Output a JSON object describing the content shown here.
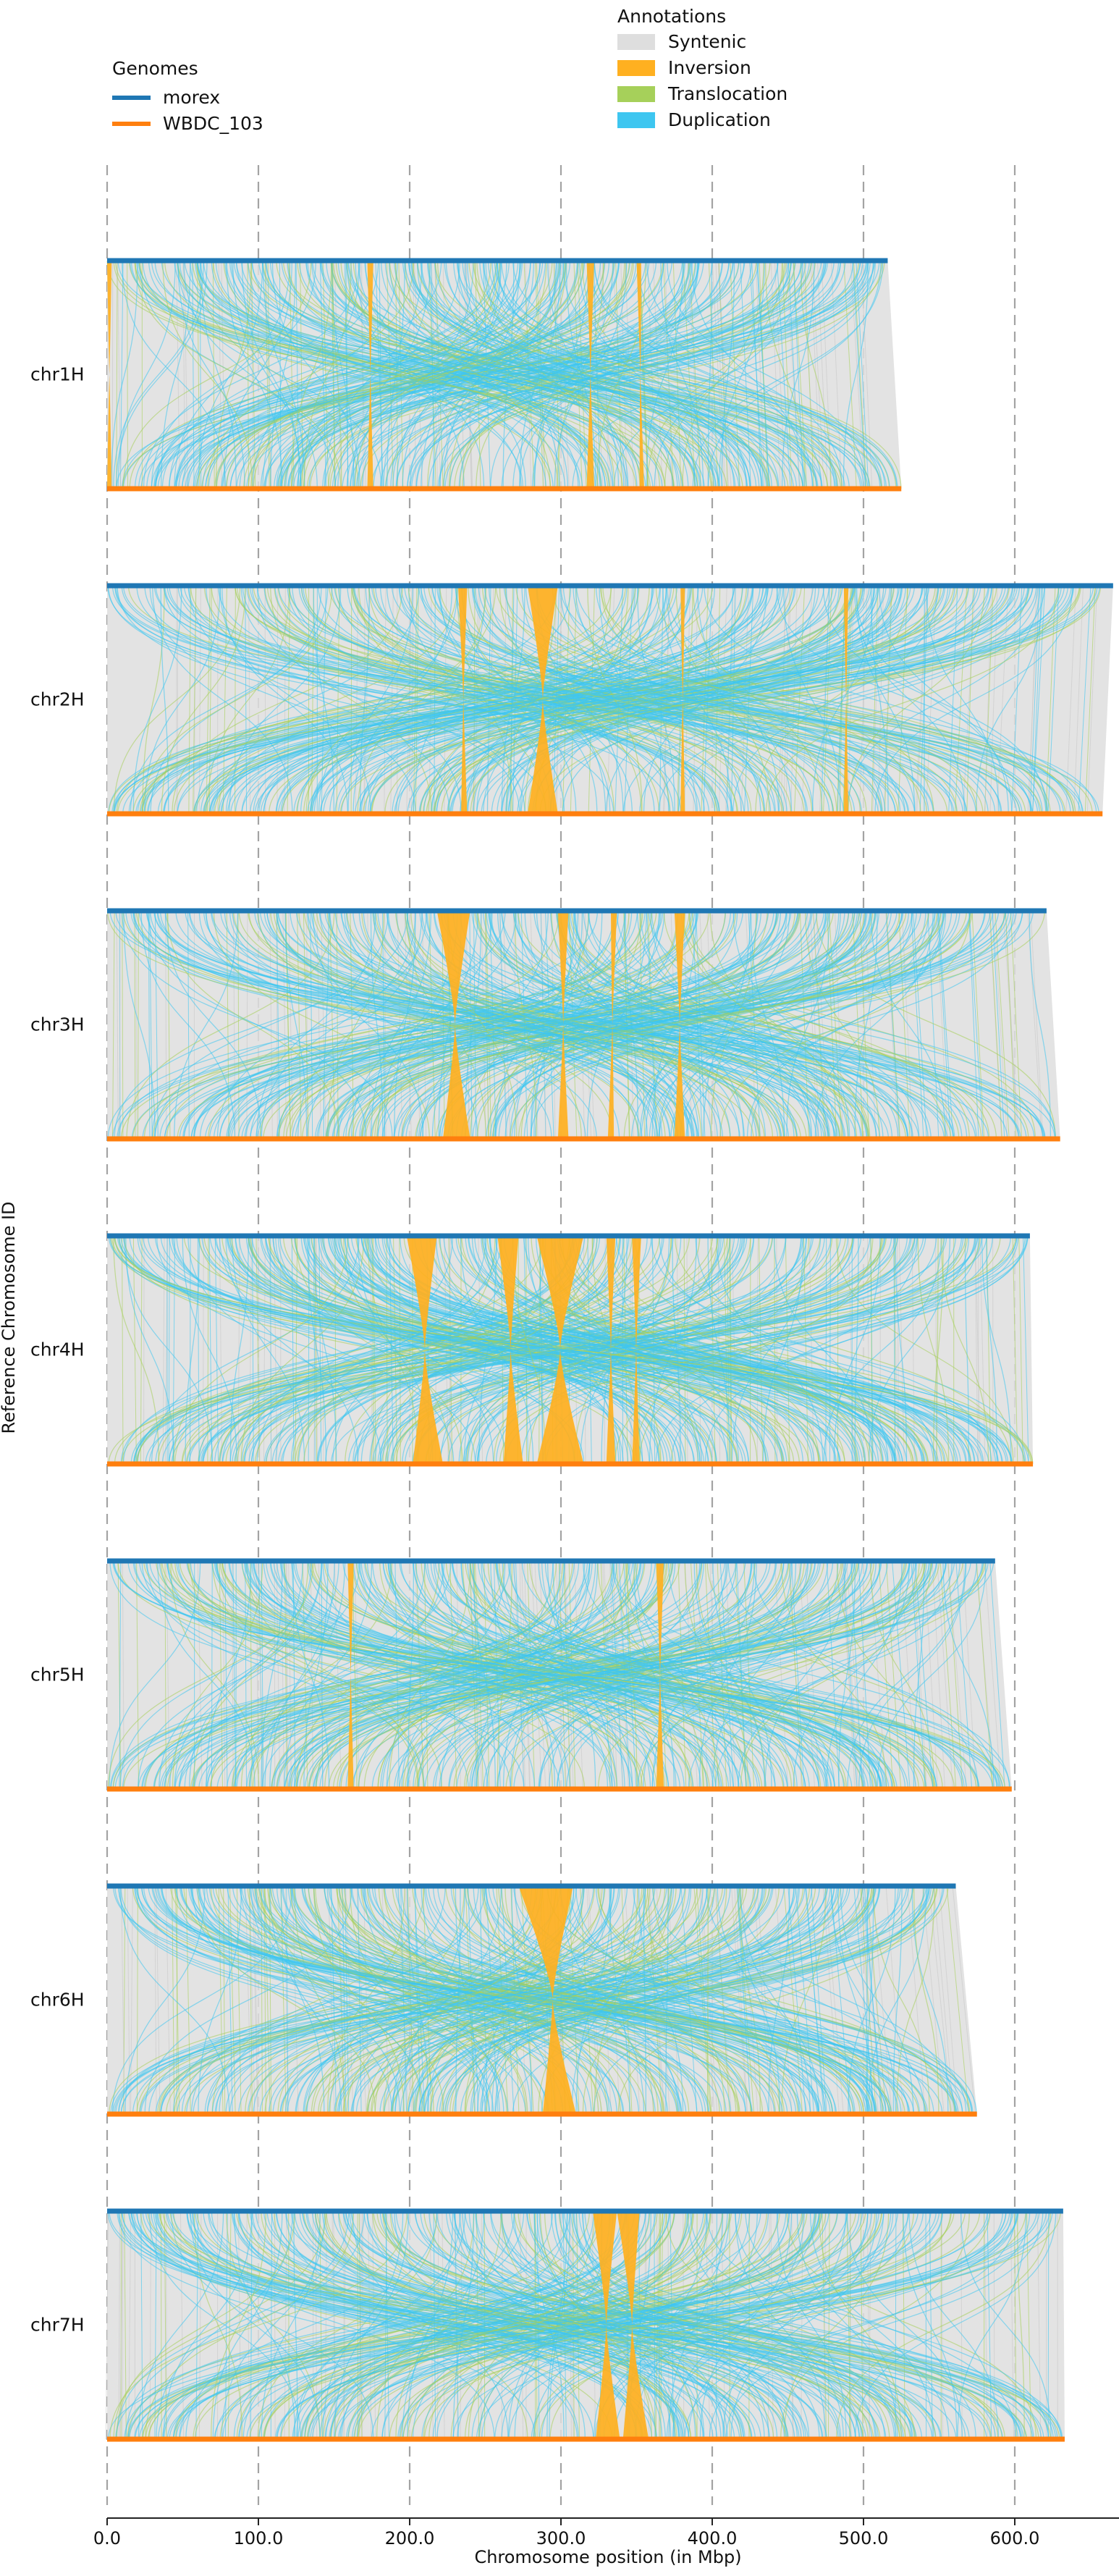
{
  "chart_data": {
    "type": "synteny",
    "xlabel": "Chromosome position (in Mbp)",
    "ylabel": "Reference Chromosome ID",
    "xlim": [
      0,
      680
    ],
    "x_ticks": [
      "0.0",
      "100.0",
      "200.0",
      "300.0",
      "400.0",
      "500.0",
      "600.0"
    ],
    "x_tick_values": [
      0,
      100,
      200,
      300,
      400,
      500,
      600
    ],
    "grid": "vertical dashed",
    "genomes_legend": {
      "title": "Genomes",
      "position": "top-left",
      "items": [
        {
          "name": "morex",
          "color": "#1f77b4"
        },
        {
          "name": "WBDC_103",
          "color": "#ff7f0e"
        }
      ]
    },
    "annotations_legend": {
      "title": "Annotations",
      "position": "top-center",
      "items": [
        {
          "name": "Syntenic",
          "color": "#dedede"
        },
        {
          "name": "Inversion",
          "color": "#ffb020"
        },
        {
          "name": "Translocation",
          "color": "#a6d05a"
        },
        {
          "name": "Duplication",
          "color": "#3ec6f0"
        }
      ]
    },
    "chromosomes": [
      {
        "id": "chr1H",
        "ref_length": 516,
        "qry_length": 525,
        "inversions": [
          [
            0,
            3,
            0,
            3
          ],
          [
            172,
            176,
            172,
            176
          ],
          [
            317,
            322,
            317,
            322
          ],
          [
            350,
            353,
            352,
            355
          ]
        ]
      },
      {
        "id": "chr2H",
        "ref_length": 665,
        "qry_length": 658,
        "inversions": [
          [
            232,
            238,
            234,
            238
          ],
          [
            278,
            298,
            278,
            298
          ],
          [
            379,
            382,
            379,
            382
          ],
          [
            487,
            490,
            487,
            490
          ]
        ]
      },
      {
        "id": "chr3H",
        "ref_length": 621,
        "qry_length": 630,
        "inversions": [
          [
            218,
            240,
            222,
            240
          ],
          [
            298,
            305,
            298,
            305
          ],
          [
            333,
            337,
            331,
            335
          ],
          [
            375,
            382,
            375,
            382
          ]
        ]
      },
      {
        "id": "chr4H",
        "ref_length": 610,
        "qry_length": 612,
        "inversions": [
          [
            198,
            218,
            202,
            222
          ],
          [
            258,
            272,
            262,
            275
          ],
          [
            284,
            315,
            284,
            315
          ],
          [
            330,
            336,
            330,
            336
          ],
          [
            347,
            353,
            347,
            352
          ]
        ]
      },
      {
        "id": "chr5H",
        "ref_length": 587,
        "qry_length": 598,
        "inversions": [
          [
            159,
            163,
            159,
            163
          ],
          [
            363,
            368,
            363,
            368
          ]
        ]
      },
      {
        "id": "chr6H",
        "ref_length": 561,
        "qry_length": 575,
        "inversions": [
          [
            272,
            308,
            288,
            310
          ]
        ]
      },
      {
        "id": "chr7H",
        "ref_length": 632,
        "qry_length": 633,
        "inversions": [
          [
            321,
            337,
            323,
            339
          ],
          [
            337,
            352,
            341,
            358
          ]
        ]
      }
    ]
  }
}
